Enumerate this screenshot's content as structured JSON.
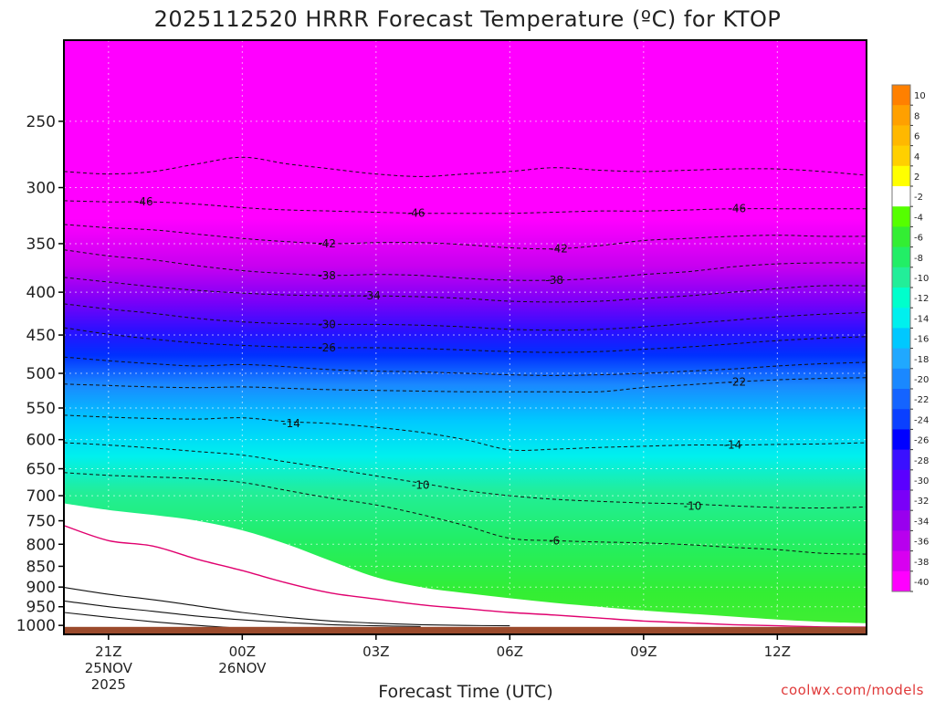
{
  "chart_data": {
    "type": "contour",
    "title": "2025112520 HRRR Forecast Temperature (ºC) for KTOP",
    "xlabel": "Forecast Time (UTC)",
    "ylabel": "",
    "credit": "coolwx.com/models",
    "x_range_hours": [
      -1,
      17
    ],
    "y_range_hpa": [
      1025,
      200
    ],
    "y_ticks": [
      "250",
      "300",
      "350",
      "400",
      "450",
      "500",
      "550",
      "600",
      "650",
      "700",
      "750",
      "800",
      "850",
      "900",
      "950",
      "1000"
    ],
    "x_ticks": [
      {
        "hour": 0,
        "label": "21Z",
        "date_line1": "25NOV",
        "date_line2": "2025"
      },
      {
        "hour": 3,
        "label": "00Z",
        "date_line1": "26NOV",
        "date_line2": ""
      },
      {
        "hour": 6,
        "label": "03Z",
        "date_line1": "",
        "date_line2": ""
      },
      {
        "hour": 9,
        "label": "06Z",
        "date_line1": "",
        "date_line2": ""
      },
      {
        "hour": 12,
        "label": "09Z",
        "date_line1": "",
        "date_line2": ""
      },
      {
        "hour": 15,
        "label": "12Z",
        "date_line1": "",
        "date_line2": ""
      }
    ],
    "colorbar_levels": [
      "10",
      "8",
      "6",
      "4",
      "2",
      "-2",
      "-4",
      "-6",
      "-8",
      "-10",
      "-12",
      "-14",
      "-16",
      "-18",
      "-20",
      "-22",
      "-24",
      "-26",
      "-28",
      "-30",
      "-32",
      "-34",
      "-36",
      "-38",
      "-40"
    ],
    "colorbar_colors": [
      "#ff8000",
      "#ffa000",
      "#ffb800",
      "#ffd000",
      "#ffff00",
      "#ffffff",
      "#55ff00",
      "#33ee33",
      "#22ee66",
      "#22ee99",
      "#00ffcc",
      "#00f0ee",
      "#00c8ff",
      "#20a8ff",
      "#1a88ff",
      "#1464ff",
      "#0a40ff",
      "#0000ff",
      "#3a10ff",
      "#5a00ff",
      "#7a00f8",
      "#9900ee",
      "#b800ee",
      "#d800f0",
      "#ff00ff"
    ],
    "contour_labels": [
      {
        "text": "-46",
        "hour": 0.8,
        "p": 312
      },
      {
        "text": "-46",
        "hour": 6.9,
        "p": 322
      },
      {
        "text": "-46",
        "hour": 14.1,
        "p": 318
      },
      {
        "text": "-42",
        "hour": 4.9,
        "p": 350
      },
      {
        "text": "-42",
        "hour": 10.1,
        "p": 355
      },
      {
        "text": "-38",
        "hour": 4.9,
        "p": 382
      },
      {
        "text": "-38",
        "hour": 10.0,
        "p": 387
      },
      {
        "text": "-34",
        "hour": 5.9,
        "p": 404
      },
      {
        "text": "-30",
        "hour": 4.9,
        "p": 437
      },
      {
        "text": "-26",
        "hour": 4.9,
        "p": 466
      },
      {
        "text": "-22",
        "hour": 14.1,
        "p": 512
      },
      {
        "text": "-14",
        "hour": 4.1,
        "p": 574
      },
      {
        "text": "-14",
        "hour": 14.0,
        "p": 609
      },
      {
        "text": "-10",
        "hour": 7.0,
        "p": 680
      },
      {
        "text": "-10",
        "hour": 13.1,
        "p": 720
      },
      {
        "text": "-6",
        "hour": 10.0,
        "p": 792
      }
    ],
    "isotherms_dashed_pressure_hpa": [
      {
        "hours": [
          -1,
          0,
          1,
          2,
          3,
          4,
          5,
          6,
          7,
          8,
          9,
          10,
          11,
          12,
          13,
          14,
          15,
          16,
          17
        ],
        "p": [
          287,
          289,
          287,
          281,
          276,
          281,
          285,
          289,
          291,
          289,
          287,
          284,
          286,
          287,
          286,
          285,
          285,
          287,
          290
        ]
      },
      {
        "hours": [
          -1,
          0,
          1,
          2,
          3,
          4,
          5,
          6,
          7,
          8,
          9,
          10,
          11,
          12,
          13,
          14,
          15,
          16,
          17
        ],
        "p": [
          311,
          312,
          312,
          314,
          317,
          319,
          320,
          321,
          322,
          322,
          322,
          321,
          320,
          320,
          319,
          318,
          318,
          318,
          318
        ]
      },
      {
        "hours": [
          -1,
          0,
          1,
          2,
          3,
          4,
          5,
          6,
          7,
          8,
          9,
          10,
          11,
          12,
          13,
          14,
          15,
          16,
          17
        ],
        "p": [
          332,
          335,
          337,
          341,
          345,
          348,
          350,
          349,
          349,
          351,
          354,
          355,
          352,
          347,
          345,
          343,
          342,
          343,
          343
        ]
      },
      {
        "hours": [
          -1,
          0,
          1,
          2,
          3,
          4,
          5,
          6,
          7,
          8,
          9,
          10,
          11,
          12,
          13,
          14,
          15,
          16,
          17
        ],
        "p": [
          356,
          362,
          366,
          372,
          377,
          380,
          382,
          381,
          382,
          385,
          387,
          387,
          385,
          381,
          378,
          373,
          370,
          369,
          369
        ]
      },
      {
        "hours": [
          -1,
          0,
          1,
          2,
          3,
          4,
          5,
          6,
          7,
          8,
          9,
          10,
          11,
          12,
          13,
          14,
          15,
          16,
          17
        ],
        "p": [
          384,
          389,
          394,
          398,
          401,
          403,
          404,
          404,
          405,
          407,
          410,
          411,
          410,
          407,
          404,
          400,
          396,
          393,
          393
        ]
      },
      {
        "hours": [
          -1,
          0,
          1,
          2,
          3,
          4,
          5,
          6,
          7,
          8,
          9,
          10,
          11,
          12,
          13,
          14,
          15,
          16,
          17
        ],
        "p": [
          413,
          419,
          424,
          430,
          434,
          436,
          437,
          437,
          438,
          440,
          443,
          444,
          443,
          440,
          436,
          432,
          428,
          425,
          423
        ]
      },
      {
        "hours": [
          -1,
          0,
          1,
          2,
          3,
          4,
          5,
          6,
          7,
          8,
          9,
          10,
          11,
          12,
          13,
          14,
          15,
          16,
          17
        ],
        "p": [
          441,
          449,
          455,
          460,
          463,
          465,
          466,
          466,
          467,
          469,
          471,
          472,
          471,
          468,
          465,
          461,
          457,
          454,
          452
        ]
      },
      {
        "hours": [
          -1,
          0,
          1,
          2,
          3,
          4,
          5,
          6,
          7,
          8,
          9,
          10,
          11,
          12,
          13,
          14,
          15,
          16,
          17
        ],
        "p": [
          478,
          483,
          487,
          490,
          488,
          491,
          495,
          497,
          498,
          500,
          502,
          503,
          502,
          500,
          497,
          494,
          490,
          487,
          485
        ]
      },
      {
        "hours": [
          -1,
          0,
          1,
          2,
          3,
          4,
          5,
          6,
          7,
          8,
          9,
          10,
          11,
          12,
          13,
          14,
          15,
          16,
          17
        ],
        "p": [
          515,
          517,
          519,
          520,
          519,
          521,
          523,
          524,
          525,
          526,
          526,
          526,
          526,
          520,
          516,
          512,
          509,
          507,
          506
        ]
      },
      {
        "hours": [
          -1,
          0,
          1,
          2,
          3,
          4,
          5,
          6,
          7,
          8,
          9,
          10,
          11,
          12,
          13,
          14,
          15,
          16,
          17
        ],
        "p": [
          561,
          564,
          566,
          567,
          565,
          571,
          574,
          580,
          588,
          600,
          617,
          616,
          613,
          611,
          609,
          609,
          608,
          607,
          605
        ]
      },
      {
        "hours": [
          -1,
          0,
          1,
          2,
          3,
          4,
          5,
          6,
          7,
          8,
          9,
          10,
          11,
          12,
          13,
          14,
          15,
          16,
          17
        ],
        "p": [
          605,
          609,
          614,
          620,
          626,
          638,
          650,
          663,
          676,
          690,
          700,
          707,
          711,
          714,
          716,
          720,
          723,
          724,
          722
        ]
      },
      {
        "hours": [
          -1,
          0,
          1,
          2,
          3,
          4,
          5,
          6,
          7,
          8,
          9,
          10,
          11,
          12,
          13,
          14,
          15,
          16,
          17
        ],
        "p": [
          657,
          662,
          665,
          668,
          675,
          690,
          705,
          718,
          737,
          760,
          787,
          792,
          795,
          797,
          801,
          807,
          812,
          820,
          822
        ]
      }
    ],
    "isotherms_solid_pressure_hpa": [
      {
        "hours": [
          -1,
          0,
          1,
          2,
          3,
          4,
          5,
          6,
          7,
          8,
          9
        ],
        "p": [
          901,
          918,
          932,
          948,
          965,
          978,
          988,
          994,
          998,
          1000,
          1001
        ]
      },
      {
        "hours": [
          -1,
          0,
          1,
          2,
          3,
          4,
          5,
          6,
          7
        ],
        "p": [
          935,
          950,
          962,
          975,
          985,
          992,
          998,
          1001,
          1003
        ]
      },
      {
        "hours": [
          -1,
          0,
          1,
          2,
          3,
          4
        ],
        "p": [
          965,
          978,
          990,
          1000,
          1008,
          1012
        ]
      }
    ],
    "freezing_line_pressure_hpa": {
      "hours": [
        -1,
        0,
        1,
        2,
        3,
        4,
        5,
        6,
        7,
        8,
        9,
        10,
        11,
        12,
        13,
        14,
        15,
        16,
        17
      ],
      "p": [
        760,
        792,
        804,
        834,
        860,
        890,
        915,
        930,
        945,
        955,
        965,
        972,
        980,
        988,
        993,
        998,
        1001,
        1004,
        1005
      ]
    },
    "subfreezing_top_pressure_hpa": {
      "hours": [
        -1,
        0,
        1,
        2,
        3,
        4,
        5,
        6,
        7,
        8,
        9,
        10,
        11,
        12,
        13,
        14,
        15,
        16,
        17
      ],
      "p": [
        715,
        728,
        738,
        750,
        770,
        800,
        838,
        876,
        900,
        915,
        928,
        940,
        950,
        960,
        968,
        976,
        984,
        990,
        994
      ]
    },
    "surface_pressure_hpa": 1004
  }
}
